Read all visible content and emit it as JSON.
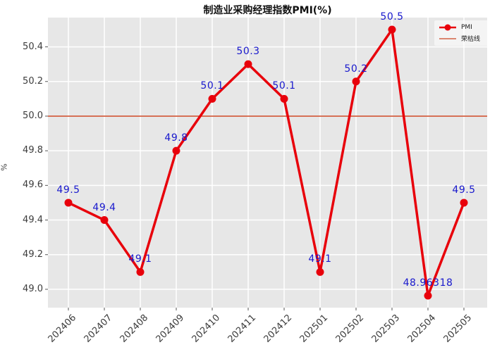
{
  "chart_data": {
    "type": "line",
    "title": "制造业采购经理指数PMI(%)",
    "xlabel": "",
    "ylabel": "%",
    "categories": [
      "202406",
      "202407",
      "202408",
      "202409",
      "202410",
      "202411",
      "202412",
      "202501",
      "202502",
      "202503",
      "202504",
      "202505"
    ],
    "series": [
      {
        "name": "PMI",
        "values": [
          49.5,
          49.4,
          49.1,
          49.8,
          50.1,
          50.3,
          50.1,
          49.1,
          50.2,
          50.5,
          48.96318,
          49.5
        ],
        "color": "#e8000b"
      }
    ],
    "point_labels": [
      "49.5",
      "49.4",
      "49.1",
      "49.8",
      "50.1",
      "50.3",
      "50.1",
      "49.1",
      "50.2",
      "50.5",
      "48.96318",
      "49.5"
    ],
    "point_label_color": "#1919cd",
    "reference_line": {
      "label": "荣枯线",
      "value": 50.0,
      "color": "#cc4422"
    },
    "legend": [
      {
        "label": "PMI",
        "marker": "line-circle",
        "color": "#e8000b"
      },
      {
        "label": "荣枯线",
        "marker": "line",
        "color": "#cc4422"
      }
    ],
    "yticks": [
      49.0,
      49.2,
      49.4,
      49.6,
      49.8,
      50.0,
      50.2,
      50.4
    ],
    "ytick_labels": [
      "49.0",
      "49.2",
      "49.4",
      "49.6",
      "49.8",
      "50.0",
      "50.2",
      "50.4"
    ],
    "ylim": [
      48.894,
      50.569
    ],
    "grid": true,
    "grid_color": "#ffffff",
    "plot_background": "#e7e7e7",
    "tick_color": "#555555",
    "legend_position": "top-right"
  }
}
